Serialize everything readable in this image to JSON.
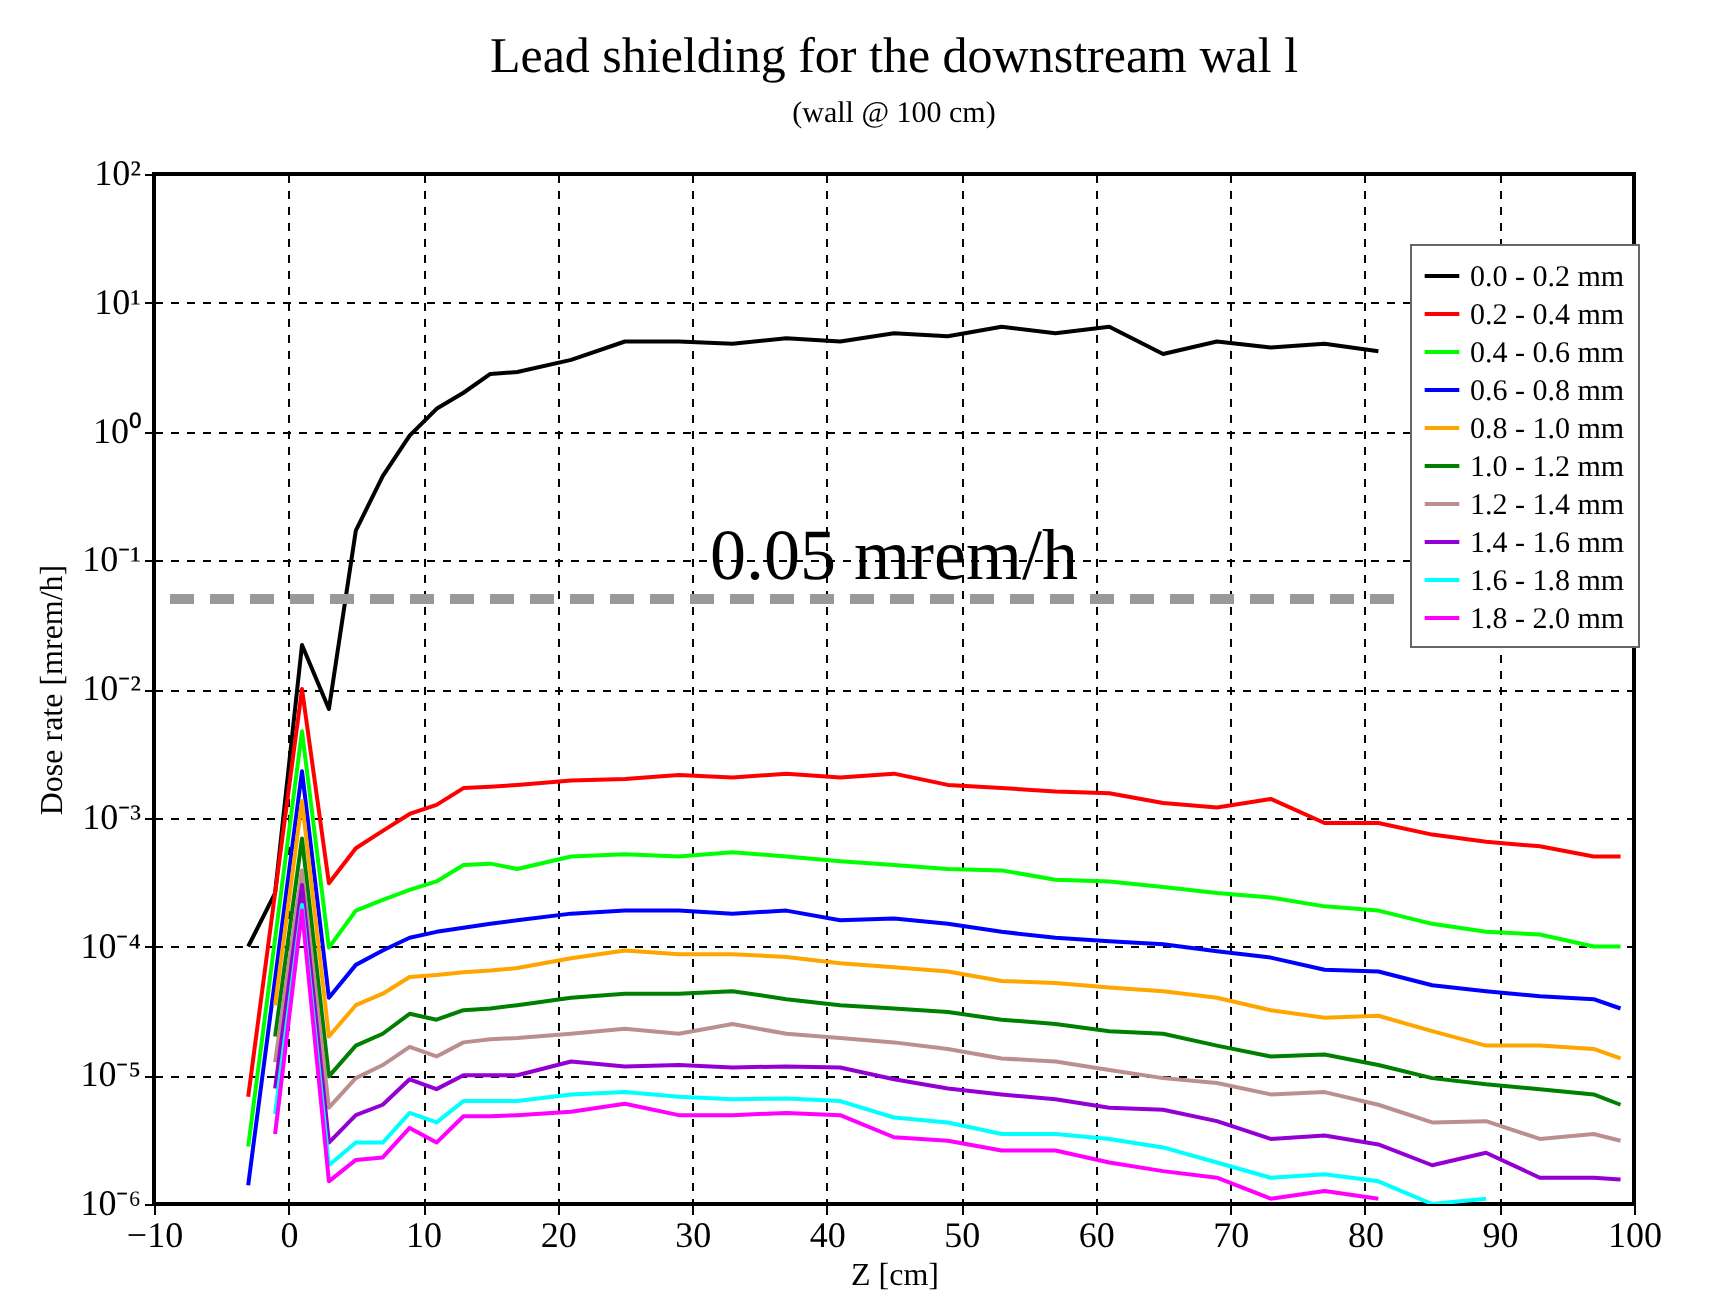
{
  "chart_data": {
    "type": "line",
    "title": "Lead shielding for the downstream wal l",
    "subtitle": "(wall @ 100 cm)",
    "xlabel": "Z [cm]",
    "ylabel": "Dose rate [mrem/h]",
    "x": [
      -3,
      -1,
      1,
      3,
      5,
      7,
      9,
      11,
      13,
      15,
      17,
      21,
      25,
      29,
      33,
      37,
      41,
      45,
      49,
      53,
      57,
      61,
      65,
      69,
      73,
      77,
      81,
      85,
      89,
      93,
      97,
      99
    ],
    "series": [
      {
        "name": "0.0 - 0.2 mm",
        "color": "#000000",
        "values": [
          0.0001,
          0.00026,
          0.022,
          0.007,
          0.17,
          0.45,
          0.93,
          1.5,
          2.0,
          2.8,
          2.9,
          3.6,
          5.0,
          5.0,
          4.8,
          5.3,
          5.0,
          5.8,
          5.5,
          6.5,
          5.8,
          6.5,
          4.0,
          5.0,
          4.5,
          4.8,
          4.2,
          null,
          null,
          null,
          null,
          null
        ]
      },
      {
        "name": "0.2 - 0.4 mm",
        "color": "#ff0000",
        "values": [
          6.8e-06,
          0.00026,
          0.01,
          0.00031,
          0.00058,
          0.00079,
          0.00107,
          0.00126,
          0.0017,
          0.00174,
          0.0018,
          0.00195,
          0.002,
          0.00215,
          0.00205,
          0.0022,
          0.00205,
          0.0022,
          0.0018,
          0.0017,
          0.0016,
          0.00155,
          0.0013,
          0.0012,
          0.0014,
          0.00091,
          0.00091,
          0.00074,
          0.00065,
          0.0006,
          0.0005,
          0.0005
        ]
      },
      {
        "name": "0.4 - 0.6 mm",
        "color": "#00ff00",
        "values": [
          2.8e-06,
          0.000115,
          0.0047,
          9.8e-05,
          0.00019,
          0.00023,
          0.000275,
          0.00032,
          0.00043,
          0.00044,
          0.0004,
          0.0005,
          0.00052,
          0.0005,
          0.00054,
          0.0005,
          0.00046,
          0.00043,
          0.0004,
          0.00039,
          0.00033,
          0.00032,
          0.00029,
          0.00026,
          0.00024,
          0.000205,
          0.00019,
          0.00015,
          0.00013,
          0.000124,
          0.0001,
          0.0001
        ]
      },
      {
        "name": "0.6 - 0.8 mm",
        "color": "#0000ff",
        "values": [
          1.4e-06,
          5.6e-05,
          0.0023,
          4e-05,
          7.2e-05,
          9.3e-05,
          0.000117,
          0.00013,
          0.00014,
          0.00015,
          0.00016,
          0.00018,
          0.00019,
          0.00019,
          0.00018,
          0.00019,
          0.00016,
          0.000165,
          0.00015,
          0.00013,
          0.000117,
          0.00011,
          0.000104,
          9.2e-05,
          8.2e-05,
          6.6e-05,
          6.4e-05,
          5e-05,
          4.5e-05,
          4.1e-05,
          3.9e-05,
          3.3e-05
        ]
      },
      {
        "name": "0.8 - 1.0 mm",
        "color": "#ffa500",
        "values": [
          null,
          3.5e-05,
          0.00135,
          2e-05,
          3.5e-05,
          4.3e-05,
          5.8e-05,
          6e-05,
          6.3e-05,
          6.5e-05,
          6.8e-05,
          8.1e-05,
          9.3e-05,
          8.7e-05,
          8.7e-05,
          8.3e-05,
          7.4e-05,
          6.9e-05,
          6.4e-05,
          5.4e-05,
          5.2e-05,
          4.8e-05,
          4.5e-05,
          4e-05,
          3.2e-05,
          2.8e-05,
          2.9e-05,
          2.2e-05,
          1.7e-05,
          1.7e-05,
          1.6e-05,
          1.35e-05
        ]
      },
      {
        "name": "1.0 - 1.2 mm",
        "color": "#008000",
        "values": [
          null,
          2e-05,
          0.00069,
          9.8e-06,
          1.7e-05,
          2.1e-05,
          3e-05,
          2.7e-05,
          3.2e-05,
          3.3e-05,
          3.5e-05,
          4e-05,
          4.3e-05,
          4.3e-05,
          4.5e-05,
          3.9e-05,
          3.5e-05,
          3.3e-05,
          3.1e-05,
          2.7e-05,
          2.5e-05,
          2.2e-05,
          2.1e-05,
          1.7e-05,
          1.4e-05,
          1.45e-05,
          1.2e-05,
          9.5e-06,
          8.5e-06,
          7.8e-06,
          7.1e-06,
          5.9e-06
        ]
      },
      {
        "name": "1.2 - 1.4 mm",
        "color": "#bc8f8f",
        "values": [
          null,
          1.26e-05,
          0.00039,
          5.6e-06,
          9.5e-06,
          1.2e-05,
          1.66e-05,
          1.4e-05,
          1.8e-05,
          1.9e-05,
          1.95e-05,
          2.1e-05,
          2.3e-05,
          2.1e-05,
          2.5e-05,
          2.1e-05,
          1.95e-05,
          1.8e-05,
          1.6e-05,
          1.35e-05,
          1.28e-05,
          1.1e-05,
          9.5e-06,
          8.7e-06,
          7.1e-06,
          7.4e-06,
          5.9e-06,
          4.3e-06,
          4.4e-06,
          3.2e-06,
          3.5e-06,
          3.1e-06
        ]
      },
      {
        "name": "1.4 - 1.6 mm",
        "color": "#9400d3",
        "values": [
          null,
          7.9e-06,
          0.0003,
          3e-06,
          4.9e-06,
          5.9e-06,
          9.3e-06,
          7.8e-06,
          1e-05,
          1e-05,
          1e-05,
          1.28e-05,
          1.17e-05,
          1.2e-05,
          1.15e-05,
          1.17e-05,
          1.15e-05,
          9.3e-06,
          7.9e-06,
          7.1e-06,
          6.5e-06,
          5.6e-06,
          5.4e-06,
          4.4e-06,
          3.2e-06,
          3.4e-06,
          2.9e-06,
          2e-06,
          2.5e-06,
          1.6e-06,
          1.6e-06,
          1.55e-06
        ]
      },
      {
        "name": "1.6 - 1.8 mm",
        "color": "#00ffff",
        "values": [
          null,
          5e-06,
          0.00021,
          2e-06,
          3e-06,
          3e-06,
          5.1e-06,
          4.3e-06,
          6.3e-06,
          6.3e-06,
          6.3e-06,
          7.1e-06,
          7.4e-06,
          6.8e-06,
          6.5e-06,
          6.6e-06,
          6.3e-06,
          4.7e-06,
          4.3e-06,
          3.5e-06,
          3.5e-06,
          3.2e-06,
          2.75e-06,
          2.1e-06,
          1.6e-06,
          1.7e-06,
          1.5e-06,
          1e-06,
          1.1e-06,
          null,
          null,
          null
        ]
      },
      {
        "name": "1.8 - 2.0 mm",
        "color": "#ff00ff",
        "values": [
          null,
          3.5e-06,
          0.00019,
          1.5e-06,
          2.2e-06,
          2.3e-06,
          3.9e-06,
          3e-06,
          4.8e-06,
          4.8e-06,
          4.9e-06,
          5.2e-06,
          6e-06,
          4.9e-06,
          4.9e-06,
          5.1e-06,
          4.9e-06,
          3.3e-06,
          3.1e-06,
          2.6e-06,
          2.6e-06,
          2.1e-06,
          1.8e-06,
          1.6e-06,
          1.1e-06,
          1.26e-06,
          1.1e-06,
          null,
          null,
          null,
          null,
          null
        ]
      }
    ],
    "log": "y",
    "xlim": [
      -10,
      100
    ],
    "xticks": [
      -10,
      0,
      10,
      20,
      30,
      40,
      50,
      60,
      70,
      80,
      90,
      100
    ],
    "ylim": [
      1e-06,
      100
    ],
    "yticks": [
      {
        "value": 1e-06,
        "label": "10⁻⁶"
      },
      {
        "value": 1e-05,
        "label": "10⁻⁵"
      },
      {
        "value": 0.0001,
        "label": "10⁻⁴"
      },
      {
        "value": 0.001,
        "label": "10⁻³"
      },
      {
        "value": 0.01,
        "label": "10⁻²"
      },
      {
        "value": 0.1,
        "label": "10⁻¹"
      },
      {
        "value": 1,
        "label": "10⁰"
      },
      {
        "value": 10,
        "label": "10¹"
      },
      {
        "value": 100,
        "label": "10²"
      }
    ],
    "ref_lines": [
      {
        "axis": "y",
        "value": 0.05,
        "label": "0.05 mrem/h",
        "color": "#999999",
        "line_style": "dashed"
      }
    ],
    "grid": true,
    "legend": "top right",
    "marker": "none",
    "line_style": "solid"
  }
}
